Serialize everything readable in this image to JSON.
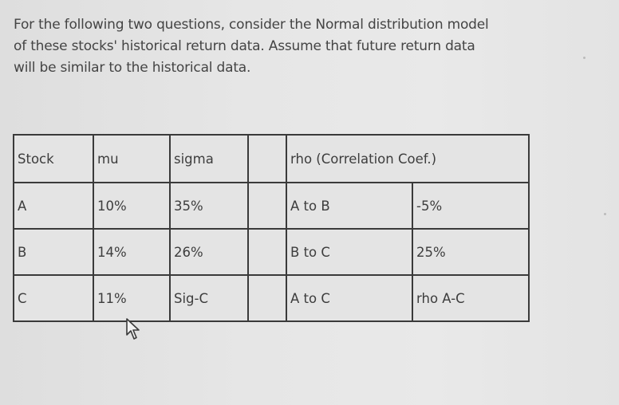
{
  "intro": {
    "line1": "For the following two questions, consider the Normal distribution model",
    "line2": "of these stocks' historical return data.  Assume that future return data",
    "line3": "will be similar to the historical data."
  },
  "table": {
    "headers": [
      "Stock",
      "mu",
      "sigma",
      "",
      "rho (Correlation Coef.)"
    ],
    "rows": [
      [
        "A",
        "10%",
        "35%",
        "",
        "A to B",
        "-5%"
      ],
      [
        "B",
        "14%",
        "26%",
        "",
        "B to C",
        "25%"
      ],
      [
        "C",
        "11%",
        "Sig-C",
        "",
        "A to C",
        "rho A-C"
      ]
    ]
  }
}
